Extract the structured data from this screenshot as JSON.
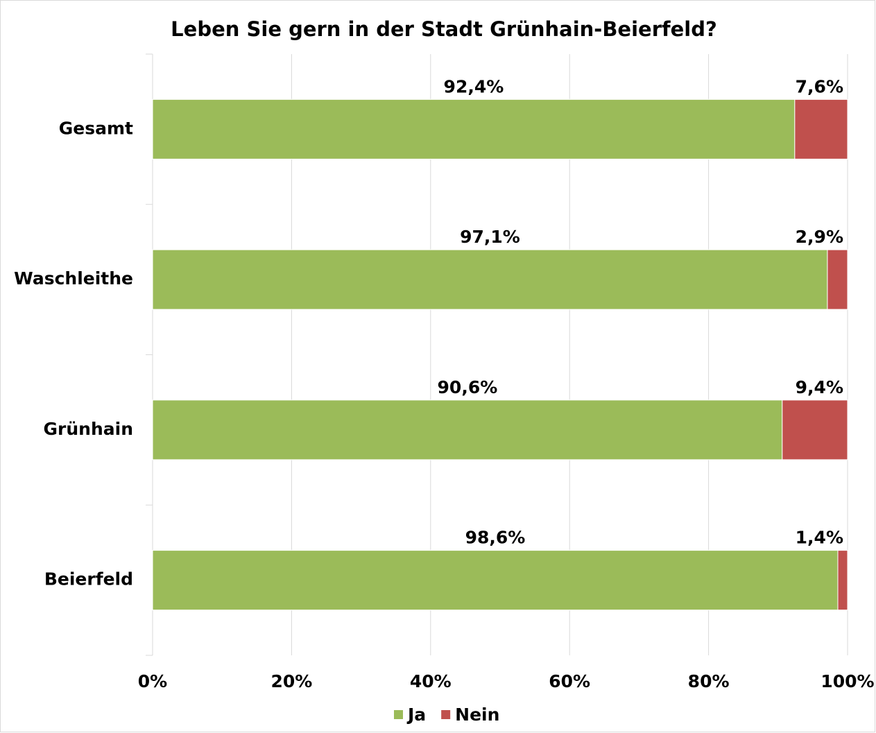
{
  "chart_data": {
    "type": "stacked-bar-horizontal",
    "title": "Leben Sie gern in der Stadt Grünhain-Beierfeld?",
    "categories": [
      "Gesamt",
      "Waschleithe",
      "Grünhain",
      "Beierfeld"
    ],
    "series": [
      {
        "name": "Ja",
        "color": "#9bbb59",
        "values": [
          92.4,
          97.1,
          90.6,
          98.6
        ],
        "value_labels": [
          "92,4%",
          "97,1%",
          "90,6%",
          "98,6%"
        ]
      },
      {
        "name": "Nein",
        "color": "#c0504d",
        "values": [
          7.6,
          2.9,
          9.4,
          1.4
        ],
        "value_labels": [
          "7,6%",
          "2,9%",
          "9,4%",
          "1,4%"
        ]
      }
    ],
    "xlim": [
      0,
      100
    ],
    "xticks": [
      {
        "value": 0,
        "label": "0%"
      },
      {
        "value": 20,
        "label": "20%"
      },
      {
        "value": 40,
        "label": "40%"
      },
      {
        "value": 60,
        "label": "60%"
      },
      {
        "value": 80,
        "label": "80%"
      },
      {
        "value": 100,
        "label": "100%"
      }
    ],
    "grid": true,
    "legend": "bottom"
  }
}
